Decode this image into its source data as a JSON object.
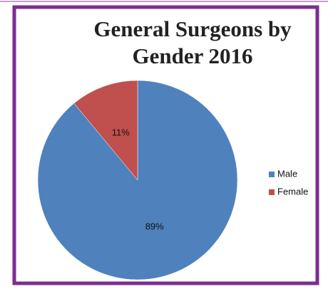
{
  "chart_data": {
    "type": "pie",
    "title": "General Surgeons by Gender 2016",
    "categories": [
      "Male",
      "Female"
    ],
    "values": [
      89,
      11
    ],
    "value_labels": [
      "89%",
      "11%"
    ],
    "colors": [
      "#4f81bd",
      "#c0504d"
    ],
    "legend": "right"
  }
}
